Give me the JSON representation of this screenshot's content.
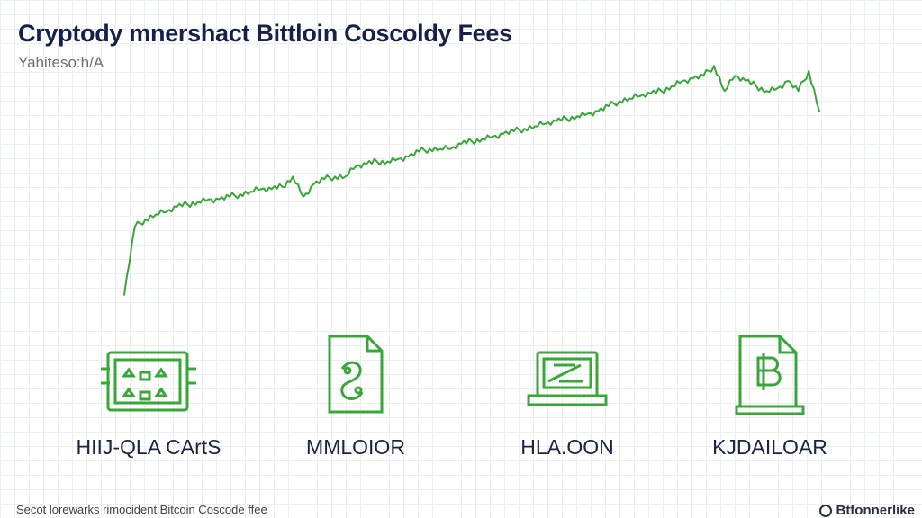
{
  "header": {
    "title": "Cryptody mnershact Bittloin Coscoldy Fees",
    "subtitle": "Yahiteso:h/A"
  },
  "chart_data": {
    "type": "line",
    "title": "Cryptody mnershact Bittloin Coscoldy Fees",
    "xlabel": "",
    "ylabel": "",
    "grid": true,
    "color": "#3aa63a",
    "series": [
      {
        "values": [
          0.05,
          0.32,
          0.35,
          0.37,
          0.38,
          0.4,
          0.41,
          0.42,
          0.43,
          0.43,
          0.44,
          0.45,
          0.46,
          0.47,
          0.47,
          0.48,
          0.52,
          0.44,
          0.49,
          0.51,
          0.52,
          0.52,
          0.56,
          0.57,
          0.58,
          0.58,
          0.59,
          0.6,
          0.62,
          0.63,
          0.63,
          0.63,
          0.65,
          0.66,
          0.67,
          0.68,
          0.69,
          0.7,
          0.71,
          0.72,
          0.73,
          0.74,
          0.75,
          0.76,
          0.77,
          0.78,
          0.8,
          0.82,
          0.83,
          0.84,
          0.85,
          0.86,
          0.88,
          0.9,
          0.91,
          0.92,
          0.96,
          0.86,
          0.92,
          0.9,
          0.88,
          0.86,
          0.87,
          0.9,
          0.86,
          0.94,
          0.78
        ]
      }
    ]
  },
  "cards": [
    {
      "icon": "chart-board-icon",
      "label": "HIIJ-QLA CArtS"
    },
    {
      "icon": "python-file-icon",
      "label": "MMLOIOR"
    },
    {
      "icon": "laptop-icon",
      "label": "HLA.OON"
    },
    {
      "icon": "bitcoin-document-icon",
      "label": "KJDAILOAR"
    }
  ],
  "footer": {
    "text": "Secot lorewarks rimocident Bitcoin Coscode ffee",
    "brand": "Btfonnerlike"
  },
  "colors": {
    "accent": "#3aa63a",
    "title": "#16204a"
  }
}
